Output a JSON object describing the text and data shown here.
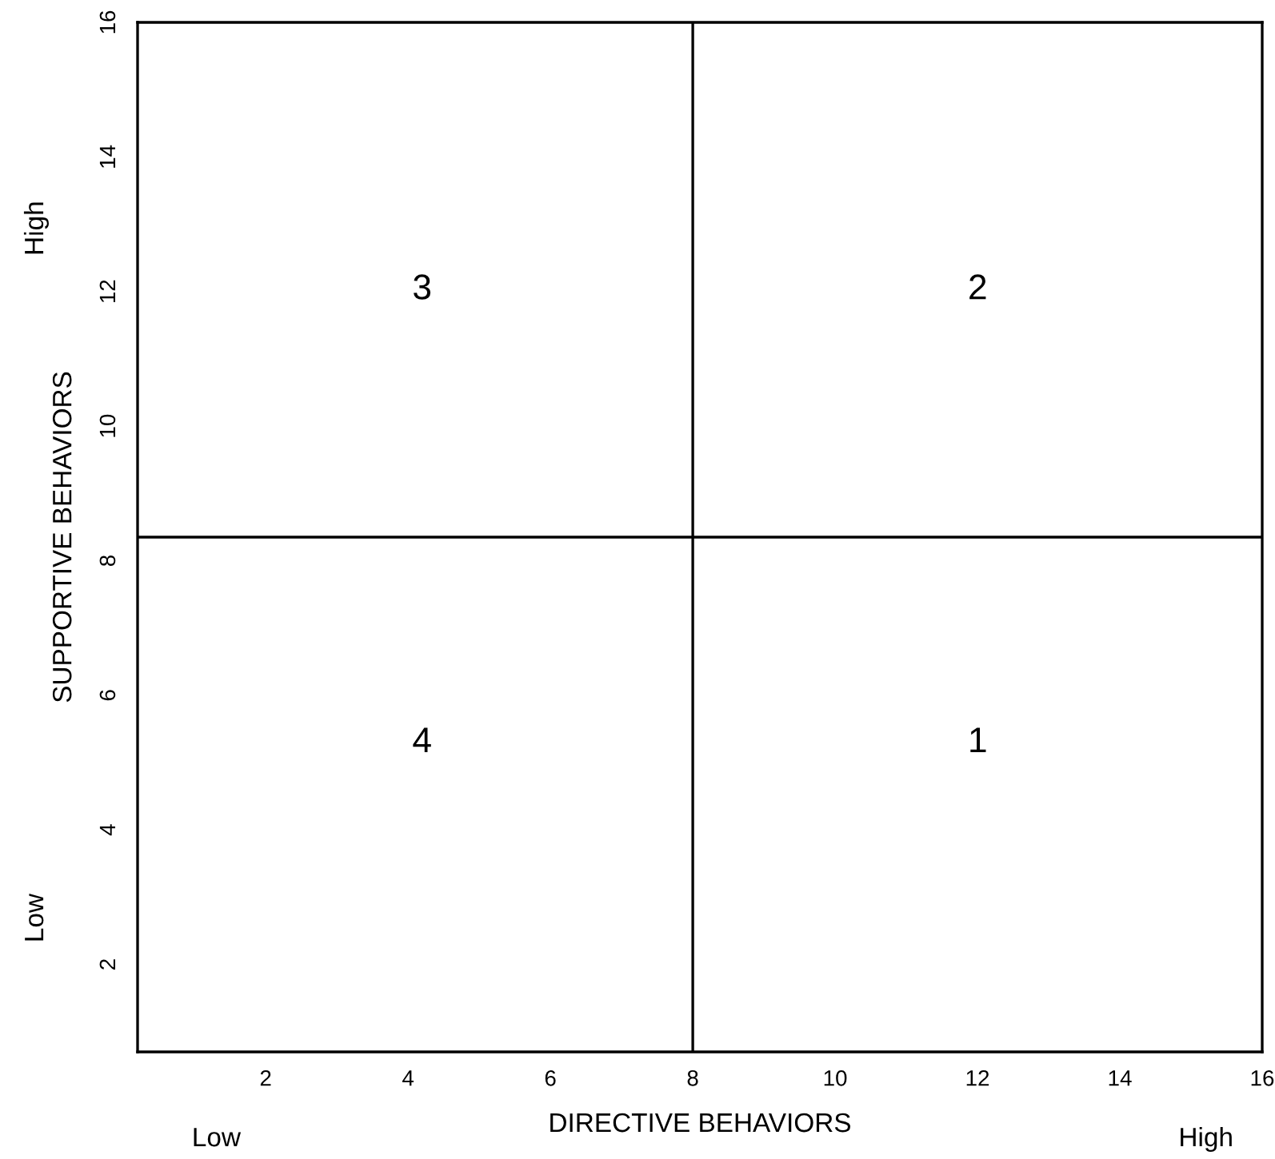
{
  "chart_data": {
    "type": "scatter",
    "xlabel": "DIRECTIVE BEHAVIORS",
    "ylabel": "SUPPORTIVE BEHAVIORS",
    "xlim": [
      0.2,
      16
    ],
    "ylim": [
      0.7,
      16
    ],
    "xticks": [
      2,
      4,
      6,
      8,
      10,
      12,
      14,
      16
    ],
    "yticks": [
      2,
      4,
      6,
      8,
      10,
      12,
      14,
      16
    ],
    "ref_lines": [
      {
        "axis": "x",
        "value": 8,
        "color": "#000000"
      },
      {
        "axis": "y",
        "value": 8.35,
        "color": "#000000"
      }
    ],
    "annotations": [
      "3",
      "2",
      "4",
      "1",
      "Low",
      "High",
      "Low",
      "High"
    ]
  }
}
